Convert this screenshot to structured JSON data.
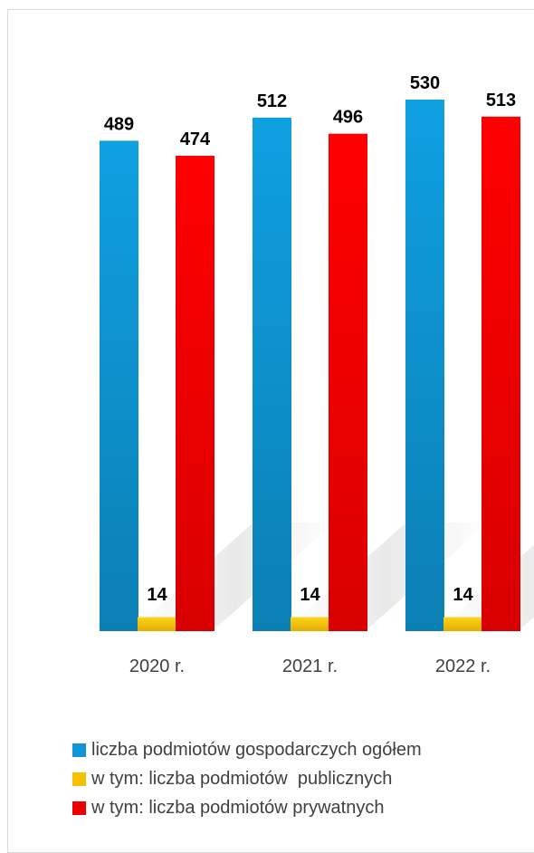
{
  "chart_data": {
    "type": "bar",
    "categories": [
      "2020 r.",
      "2021 r.",
      "2022 r."
    ],
    "series": [
      {
        "name": "liczba podmiotów gospodarczych ogółem",
        "values": [
          489,
          512,
          530
        ],
        "color": "#0f96d6"
      },
      {
        "name": "w tym: liczba podmiotów  publicznych",
        "values": [
          14,
          14,
          14
        ],
        "color": "#f6c000"
      },
      {
        "name": "w tym: liczba podmiotów prywatnych",
        "values": [
          474,
          496,
          513
        ],
        "color": "#ee0000"
      }
    ],
    "ylim": [
      0,
      540
    ],
    "grid": false,
    "legend_position": "bottom-left"
  }
}
